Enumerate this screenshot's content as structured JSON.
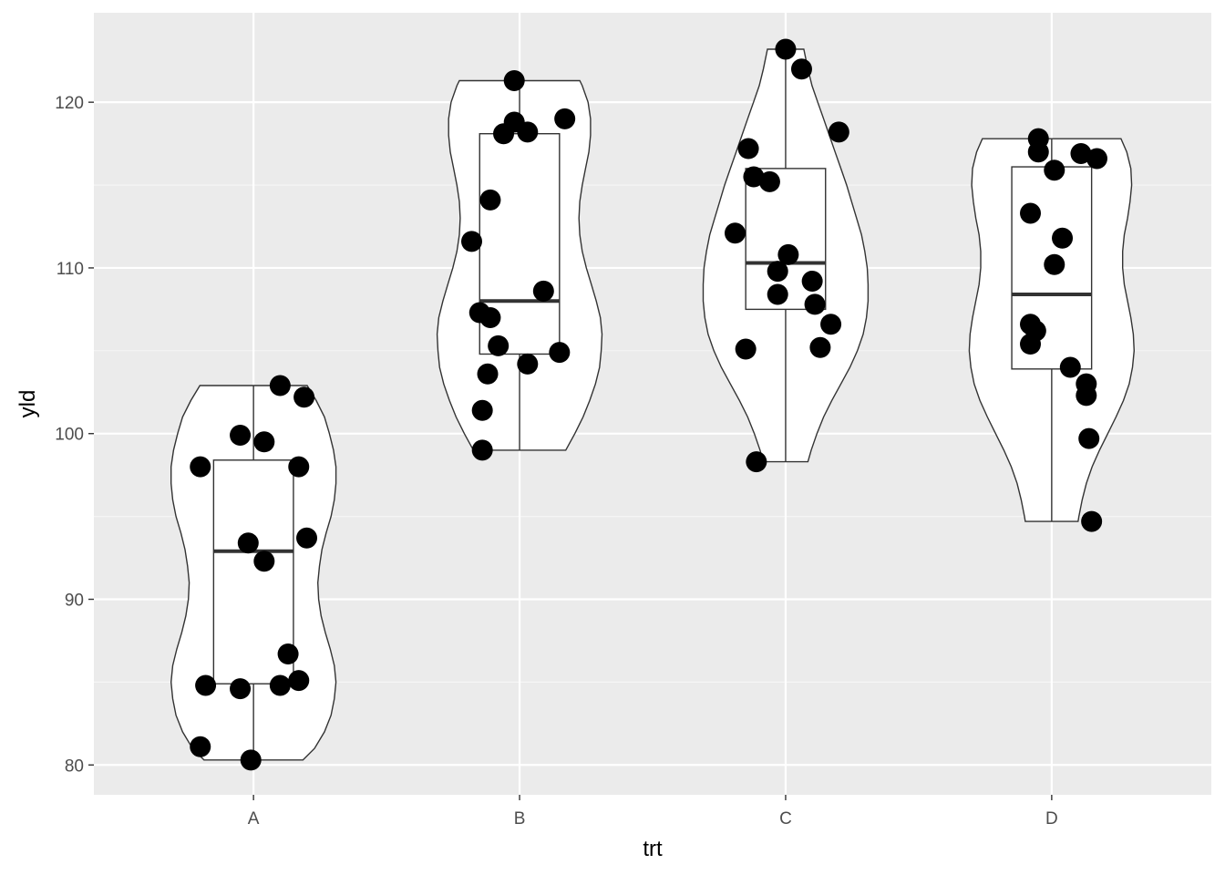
{
  "chart_data": {
    "type": "violin",
    "xlabel": "trt",
    "ylabel": "yld",
    "categories": [
      "A",
      "B",
      "C",
      "D"
    ],
    "ylim": [
      78.2,
      125.4
    ],
    "y_ticks": [
      80,
      90,
      100,
      110,
      120
    ],
    "grid": true,
    "colors": {
      "panel": "#ebebeb",
      "grid_major": "#ffffff",
      "grid_minor": "#f5f5f5",
      "violin_fill": "#ffffff",
      "outline": "#333333",
      "point": "#000000"
    },
    "groups": [
      {
        "category": "A",
        "box": {
          "q1": 84.9,
          "median": 92.9,
          "q3": 98.4,
          "whisker_low": 80.3,
          "whisker_high": 102.9
        },
        "density": [
          [
            80.3,
            0.6
          ],
          [
            81,
            0.74
          ],
          [
            82,
            0.86
          ],
          [
            83,
            0.94
          ],
          [
            84,
            0.98
          ],
          [
            85,
            1.0
          ],
          [
            86,
            0.98
          ],
          [
            87,
            0.93
          ],
          [
            88,
            0.87
          ],
          [
            89,
            0.82
          ],
          [
            90,
            0.79
          ],
          [
            91,
            0.78
          ],
          [
            92,
            0.8
          ],
          [
            93,
            0.83
          ],
          [
            94,
            0.88
          ],
          [
            95,
            0.94
          ],
          [
            96,
            0.98
          ],
          [
            97,
            1.0
          ],
          [
            98,
            1.0
          ],
          [
            99,
            0.97
          ],
          [
            100,
            0.92
          ],
          [
            101,
            0.86
          ],
          [
            102,
            0.76
          ],
          [
            102.9,
            0.65
          ]
        ],
        "points": [
          [
            -0.2,
            98.0
          ],
          [
            -0.05,
            99.9
          ],
          [
            0.04,
            99.5
          ],
          [
            0.1,
            102.9
          ],
          [
            0.19,
            102.2
          ],
          [
            0.17,
            98.0
          ],
          [
            -0.02,
            93.4
          ],
          [
            0.04,
            92.3
          ],
          [
            0.2,
            93.7
          ],
          [
            0.13,
            86.7
          ],
          [
            -0.18,
            84.8
          ],
          [
            -0.05,
            84.6
          ],
          [
            0.1,
            84.8
          ],
          [
            0.17,
            85.1
          ],
          [
            -0.2,
            81.1
          ],
          [
            -0.01,
            80.3
          ]
        ]
      },
      {
        "category": "B",
        "box": {
          "q1": 104.8,
          "median": 108.0,
          "q3": 118.1,
          "whisker_low": 99.0,
          "whisker_high": 121.3
        },
        "density": [
          [
            99.0,
            0.56
          ],
          [
            100,
            0.67
          ],
          [
            101,
            0.77
          ],
          [
            102,
            0.85
          ],
          [
            103,
            0.92
          ],
          [
            104,
            0.97
          ],
          [
            105,
            0.99
          ],
          [
            106,
            1.0
          ],
          [
            107,
            0.98
          ],
          [
            108,
            0.93
          ],
          [
            109,
            0.87
          ],
          [
            110,
            0.81
          ],
          [
            111,
            0.76
          ],
          [
            112,
            0.73
          ],
          [
            113,
            0.72
          ],
          [
            114,
            0.73
          ],
          [
            115,
            0.76
          ],
          [
            116,
            0.8
          ],
          [
            117,
            0.84
          ],
          [
            118,
            0.86
          ],
          [
            119,
            0.86
          ],
          [
            120,
            0.83
          ],
          [
            121,
            0.76
          ],
          [
            121.3,
            0.73
          ]
        ],
        "points": [
          [
            -0.02,
            121.3
          ],
          [
            -0.02,
            118.8
          ],
          [
            -0.06,
            118.1
          ],
          [
            0.03,
            118.2
          ],
          [
            0.17,
            119.0
          ],
          [
            -0.11,
            114.1
          ],
          [
            -0.18,
            111.6
          ],
          [
            0.09,
            108.6
          ],
          [
            -0.15,
            107.3
          ],
          [
            -0.11,
            107.0
          ],
          [
            -0.08,
            105.3
          ],
          [
            0.03,
            104.2
          ],
          [
            0.15,
            104.9
          ],
          [
            -0.12,
            103.6
          ],
          [
            -0.14,
            101.4
          ],
          [
            -0.14,
            99.0
          ]
        ]
      },
      {
        "category": "C",
        "box": {
          "q1": 107.5,
          "median": 110.3,
          "q3": 116.0,
          "whisker_low": 98.3,
          "whisker_high": 123.2
        },
        "density": [
          [
            98.3,
            0.27
          ],
          [
            99,
            0.31
          ],
          [
            100,
            0.38
          ],
          [
            101,
            0.46
          ],
          [
            102,
            0.56
          ],
          [
            103,
            0.67
          ],
          [
            104,
            0.78
          ],
          [
            105,
            0.87
          ],
          [
            106,
            0.94
          ],
          [
            107,
            0.98
          ],
          [
            108,
            1.0
          ],
          [
            109,
            1.0
          ],
          [
            110,
            0.99
          ],
          [
            111,
            0.96
          ],
          [
            112,
            0.92
          ],
          [
            113,
            0.86
          ],
          [
            114,
            0.8
          ],
          [
            115,
            0.74
          ],
          [
            116,
            0.67
          ],
          [
            117,
            0.6
          ],
          [
            118,
            0.53
          ],
          [
            119,
            0.46
          ],
          [
            120,
            0.39
          ],
          [
            121,
            0.32
          ],
          [
            122,
            0.27
          ],
          [
            123.2,
            0.22
          ]
        ],
        "points": [
          [
            0.0,
            123.2
          ],
          [
            0.06,
            122.0
          ],
          [
            0.2,
            118.2
          ],
          [
            -0.14,
            117.2
          ],
          [
            -0.12,
            115.5
          ],
          [
            -0.06,
            115.2
          ],
          [
            -0.19,
            112.1
          ],
          [
            0.01,
            110.8
          ],
          [
            -0.03,
            109.8
          ],
          [
            0.1,
            109.2
          ],
          [
            -0.03,
            108.4
          ],
          [
            0.11,
            107.8
          ],
          [
            0.17,
            106.6
          ],
          [
            0.13,
            105.2
          ],
          [
            -0.15,
            105.1
          ],
          [
            -0.11,
            98.3
          ]
        ]
      },
      {
        "category": "D",
        "box": {
          "q1": 103.9,
          "median": 108.4,
          "q3": 116.1,
          "whisker_low": 94.7,
          "whisker_high": 117.8
        },
        "density": [
          [
            94.7,
            0.32
          ],
          [
            95,
            0.33
          ],
          [
            96,
            0.37
          ],
          [
            97,
            0.42
          ],
          [
            98,
            0.49
          ],
          [
            99,
            0.58
          ],
          [
            100,
            0.68
          ],
          [
            101,
            0.78
          ],
          [
            102,
            0.87
          ],
          [
            103,
            0.94
          ],
          [
            104,
            0.98
          ],
          [
            105,
            1.0
          ],
          [
            106,
            0.99
          ],
          [
            107,
            0.96
          ],
          [
            108,
            0.92
          ],
          [
            109,
            0.88
          ],
          [
            110,
            0.86
          ],
          [
            111,
            0.86
          ],
          [
            112,
            0.88
          ],
          [
            113,
            0.92
          ],
          [
            114,
            0.95
          ],
          [
            115,
            0.97
          ],
          [
            116,
            0.96
          ],
          [
            117,
            0.91
          ],
          [
            117.8,
            0.84
          ]
        ],
        "points": [
          [
            -0.05,
            117.8
          ],
          [
            -0.05,
            117.0
          ],
          [
            0.11,
            116.9
          ],
          [
            0.17,
            116.6
          ],
          [
            0.01,
            115.9
          ],
          [
            -0.08,
            113.3
          ],
          [
            0.04,
            111.8
          ],
          [
            0.01,
            110.2
          ],
          [
            -0.08,
            106.6
          ],
          [
            -0.06,
            106.2
          ],
          [
            -0.08,
            105.4
          ],
          [
            0.07,
            104.0
          ],
          [
            0.13,
            103.0
          ],
          [
            0.13,
            102.3
          ],
          [
            0.14,
            99.7
          ],
          [
            0.15,
            94.7
          ]
        ]
      }
    ]
  }
}
